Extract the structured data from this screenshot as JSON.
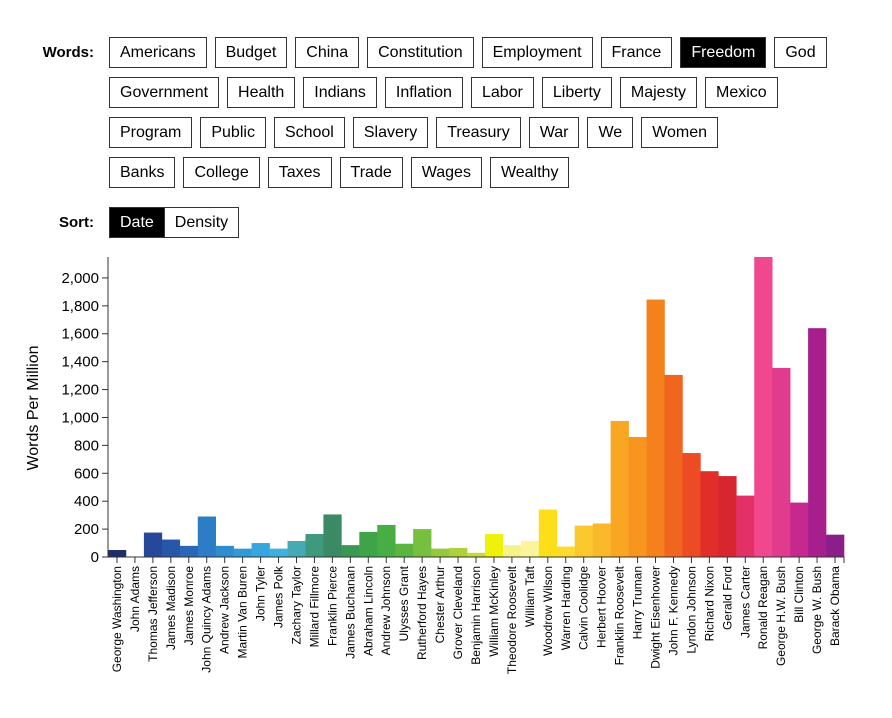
{
  "words_label": "Words:",
  "word_rows": [
    [
      "Americans",
      "Budget",
      "China",
      "Constitution",
      "Employment",
      "France",
      "Freedom",
      "God"
    ],
    [
      "Government",
      "Health",
      "Indians",
      "Inflation",
      "Labor",
      "Liberty",
      "Majesty",
      "Mexico"
    ],
    [
      "Program",
      "Public",
      "School",
      "Slavery",
      "Treasury",
      "War",
      "We",
      "Women"
    ],
    [
      "Banks",
      "College",
      "Taxes",
      "Trade",
      "Wages",
      "Wealthy"
    ]
  ],
  "selected_word": "Freedom",
  "sort_label": "Sort:",
  "sort_options": [
    "Date",
    "Density"
  ],
  "selected_sort": "Date",
  "colors": {
    "active_bg": "#000000",
    "active_fg": "#ffffff",
    "axis": "#333333"
  },
  "chart_data": {
    "type": "bar",
    "ylabel": "Words Per Million",
    "ylim": [
      0,
      2150
    ],
    "yticks": [
      0,
      200,
      400,
      600,
      800,
      1000,
      1200,
      1400,
      1600,
      1800,
      2000
    ],
    "ytick_labels": [
      "0",
      "200",
      "400",
      "600",
      "800",
      "1,000",
      "1,200",
      "1,400",
      "1,600",
      "1,800",
      "2,000"
    ],
    "categories": [
      "George Washington",
      "John Adams",
      "Thomas Jefferson",
      "James Madison",
      "James Monroe",
      "John Quincy Adams",
      "Andrew Jackson",
      "Martin Van Buren",
      "John Tyler",
      "James Polk",
      "Zachary Taylor",
      "Millard Fillmore",
      "Franklin Pierce",
      "James Buchanan",
      "Abraham Lincoln",
      "Andrew Johnson",
      "Ulysses Grant",
      "Rutherford Hayes",
      "Chester Arthur",
      "Grover Cleveland",
      "Benjamin Harrison",
      "William McKinley",
      "Theodore Roosevelt",
      "William Taft",
      "Woodrow Wilson",
      "Warren Harding",
      "Calvin Coolidge",
      "Herbert Hoover",
      "Franklin Roosevelt",
      "Harry Truman",
      "Dwight Eisenhower",
      "John F. Kennedy",
      "Lyndon Johnson",
      "Richard Nixon",
      "Gerald Ford",
      "James Carter",
      "Ronald Reagan",
      "George H.W. Bush",
      "Bill Clinton",
      "George W. Bush",
      "Barack Obama"
    ],
    "values": [
      50,
      0,
      175,
      125,
      80,
      290,
      80,
      60,
      100,
      60,
      115,
      165,
      305,
      85,
      180,
      230,
      95,
      200,
      60,
      65,
      30,
      165,
      85,
      115,
      340,
      75,
      225,
      240,
      975,
      860,
      1845,
      1305,
      745,
      615,
      580,
      440,
      2150,
      1355,
      390,
      1640,
      160
    ],
    "bar_colors": [
      "#1f2d6b",
      "#24357a",
      "#26479a",
      "#2856a8",
      "#2b67b8",
      "#2c7dc6",
      "#2e8ccf",
      "#3299d6",
      "#37a6de",
      "#3fb1df",
      "#46a9b3",
      "#3f9a7d",
      "#3b8a65",
      "#3b9852",
      "#3fa448",
      "#48ad42",
      "#5bb540",
      "#77bf3e",
      "#93c93b",
      "#aed038",
      "#c7db35",
      "#eef20a",
      "#f7f38a",
      "#fbf49a",
      "#fdde18",
      "#fdda30",
      "#fbc82e",
      "#fab92a",
      "#f9a623",
      "#f8951f",
      "#f4811c",
      "#f1661f",
      "#ec4b24",
      "#e22e28",
      "#d7262e",
      "#e33168",
      "#f1478f",
      "#e13b8d",
      "#c7288e",
      "#a61f8c",
      "#8a1f8a"
    ]
  }
}
